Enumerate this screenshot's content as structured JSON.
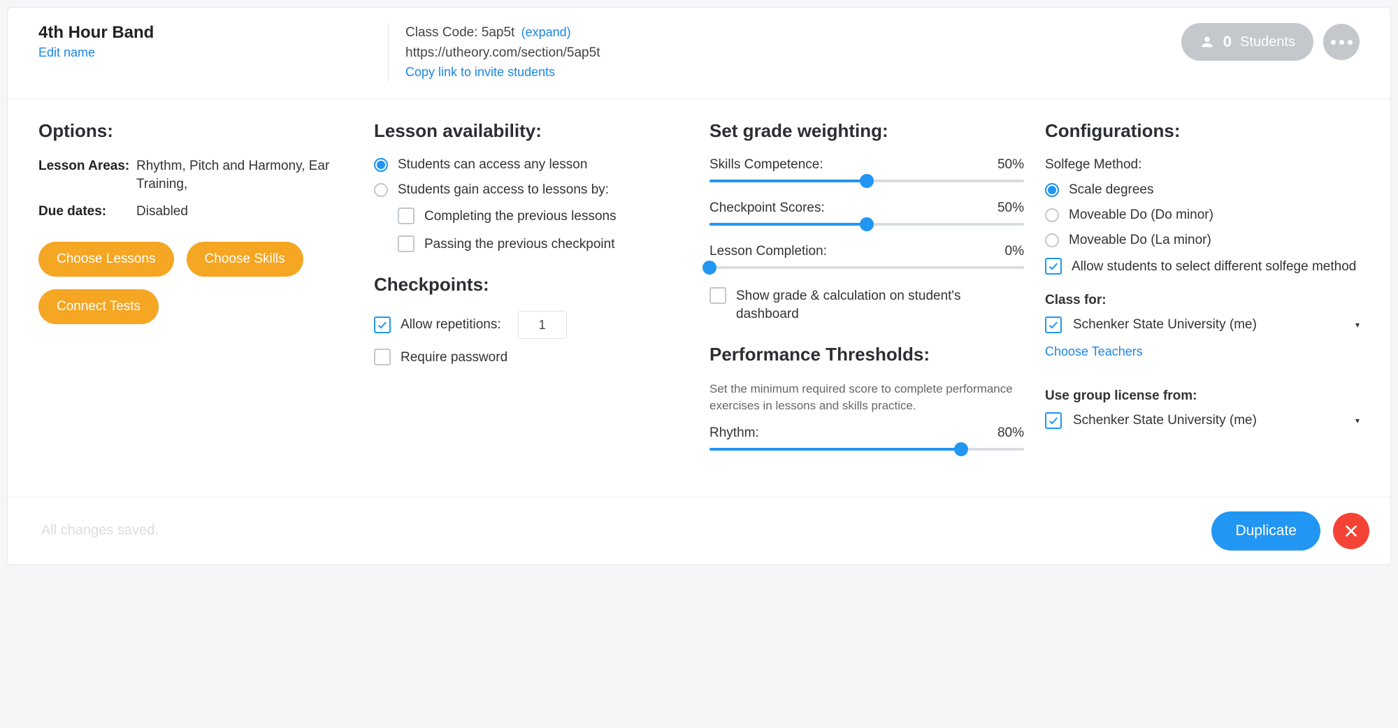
{
  "colors": {
    "accent": "#2196f3",
    "orange": "#f5a623",
    "danger": "#f44336",
    "muted": "#c4c8cc"
  },
  "header": {
    "title": "4th Hour Band",
    "edit_name": "Edit name",
    "class_code_label": "Class Code: ",
    "class_code": "5ap5t",
    "expand": "(expand)",
    "url": "https://utheory.com/section/5ap5t",
    "copy_link": "Copy link to invite students",
    "students_count": "0",
    "students_label": "Students"
  },
  "options": {
    "heading": "Options:",
    "rows": [
      {
        "label": "Lesson Areas:",
        "value": "Rhythm, Pitch and Harmony, Ear Training,"
      },
      {
        "label": "Due dates:",
        "value": "Disabled"
      }
    ],
    "buttons": {
      "choose_lessons": "Choose Lessons",
      "choose_skills": "Choose Skills",
      "connect_tests": "Connect Tests"
    }
  },
  "availability": {
    "heading": "Lesson availability:",
    "opt_any": "Students can access any lesson",
    "opt_gate": "Students gain access to lessons by:",
    "gate_prev": "Completing the previous lessons",
    "gate_checkpoint": "Passing the previous checkpoint"
  },
  "checkpoints": {
    "heading": "Checkpoints:",
    "allow_repetitions": "Allow repetitions:",
    "repetitions_value": "1",
    "require_password": "Require password"
  },
  "weighting": {
    "heading": "Set grade weighting:",
    "sliders": [
      {
        "label": "Skills Competence:",
        "value": 50,
        "display": "50%"
      },
      {
        "label": "Checkpoint Scores:",
        "value": 50,
        "display": "50%"
      },
      {
        "label": "Lesson Completion:",
        "value": 0,
        "display": "0%"
      }
    ],
    "show_dash": "Show grade & calculation on student's dashboard"
  },
  "thresholds": {
    "heading": "Performance Thresholds:",
    "desc": "Set the minimum required score to complete performance exercises in lessons and skills practice.",
    "sliders": [
      {
        "label": "Rhythm:",
        "value": 80,
        "display": "80%"
      }
    ]
  },
  "config": {
    "heading": "Configurations:",
    "solfege_label": "Solfege Method:",
    "solfege_options": [
      "Scale degrees",
      "Moveable Do (Do minor)",
      "Moveable Do (La minor)"
    ],
    "allow_select": "Allow students to select different solfege method",
    "class_for_label": "Class for:",
    "class_for_value": "Schenker State University (me)",
    "choose_teachers": "Choose Teachers",
    "license_label": "Use group license from:",
    "license_value": "Schenker State University (me)"
  },
  "footer": {
    "saved": "All changes saved.",
    "duplicate": "Duplicate"
  }
}
